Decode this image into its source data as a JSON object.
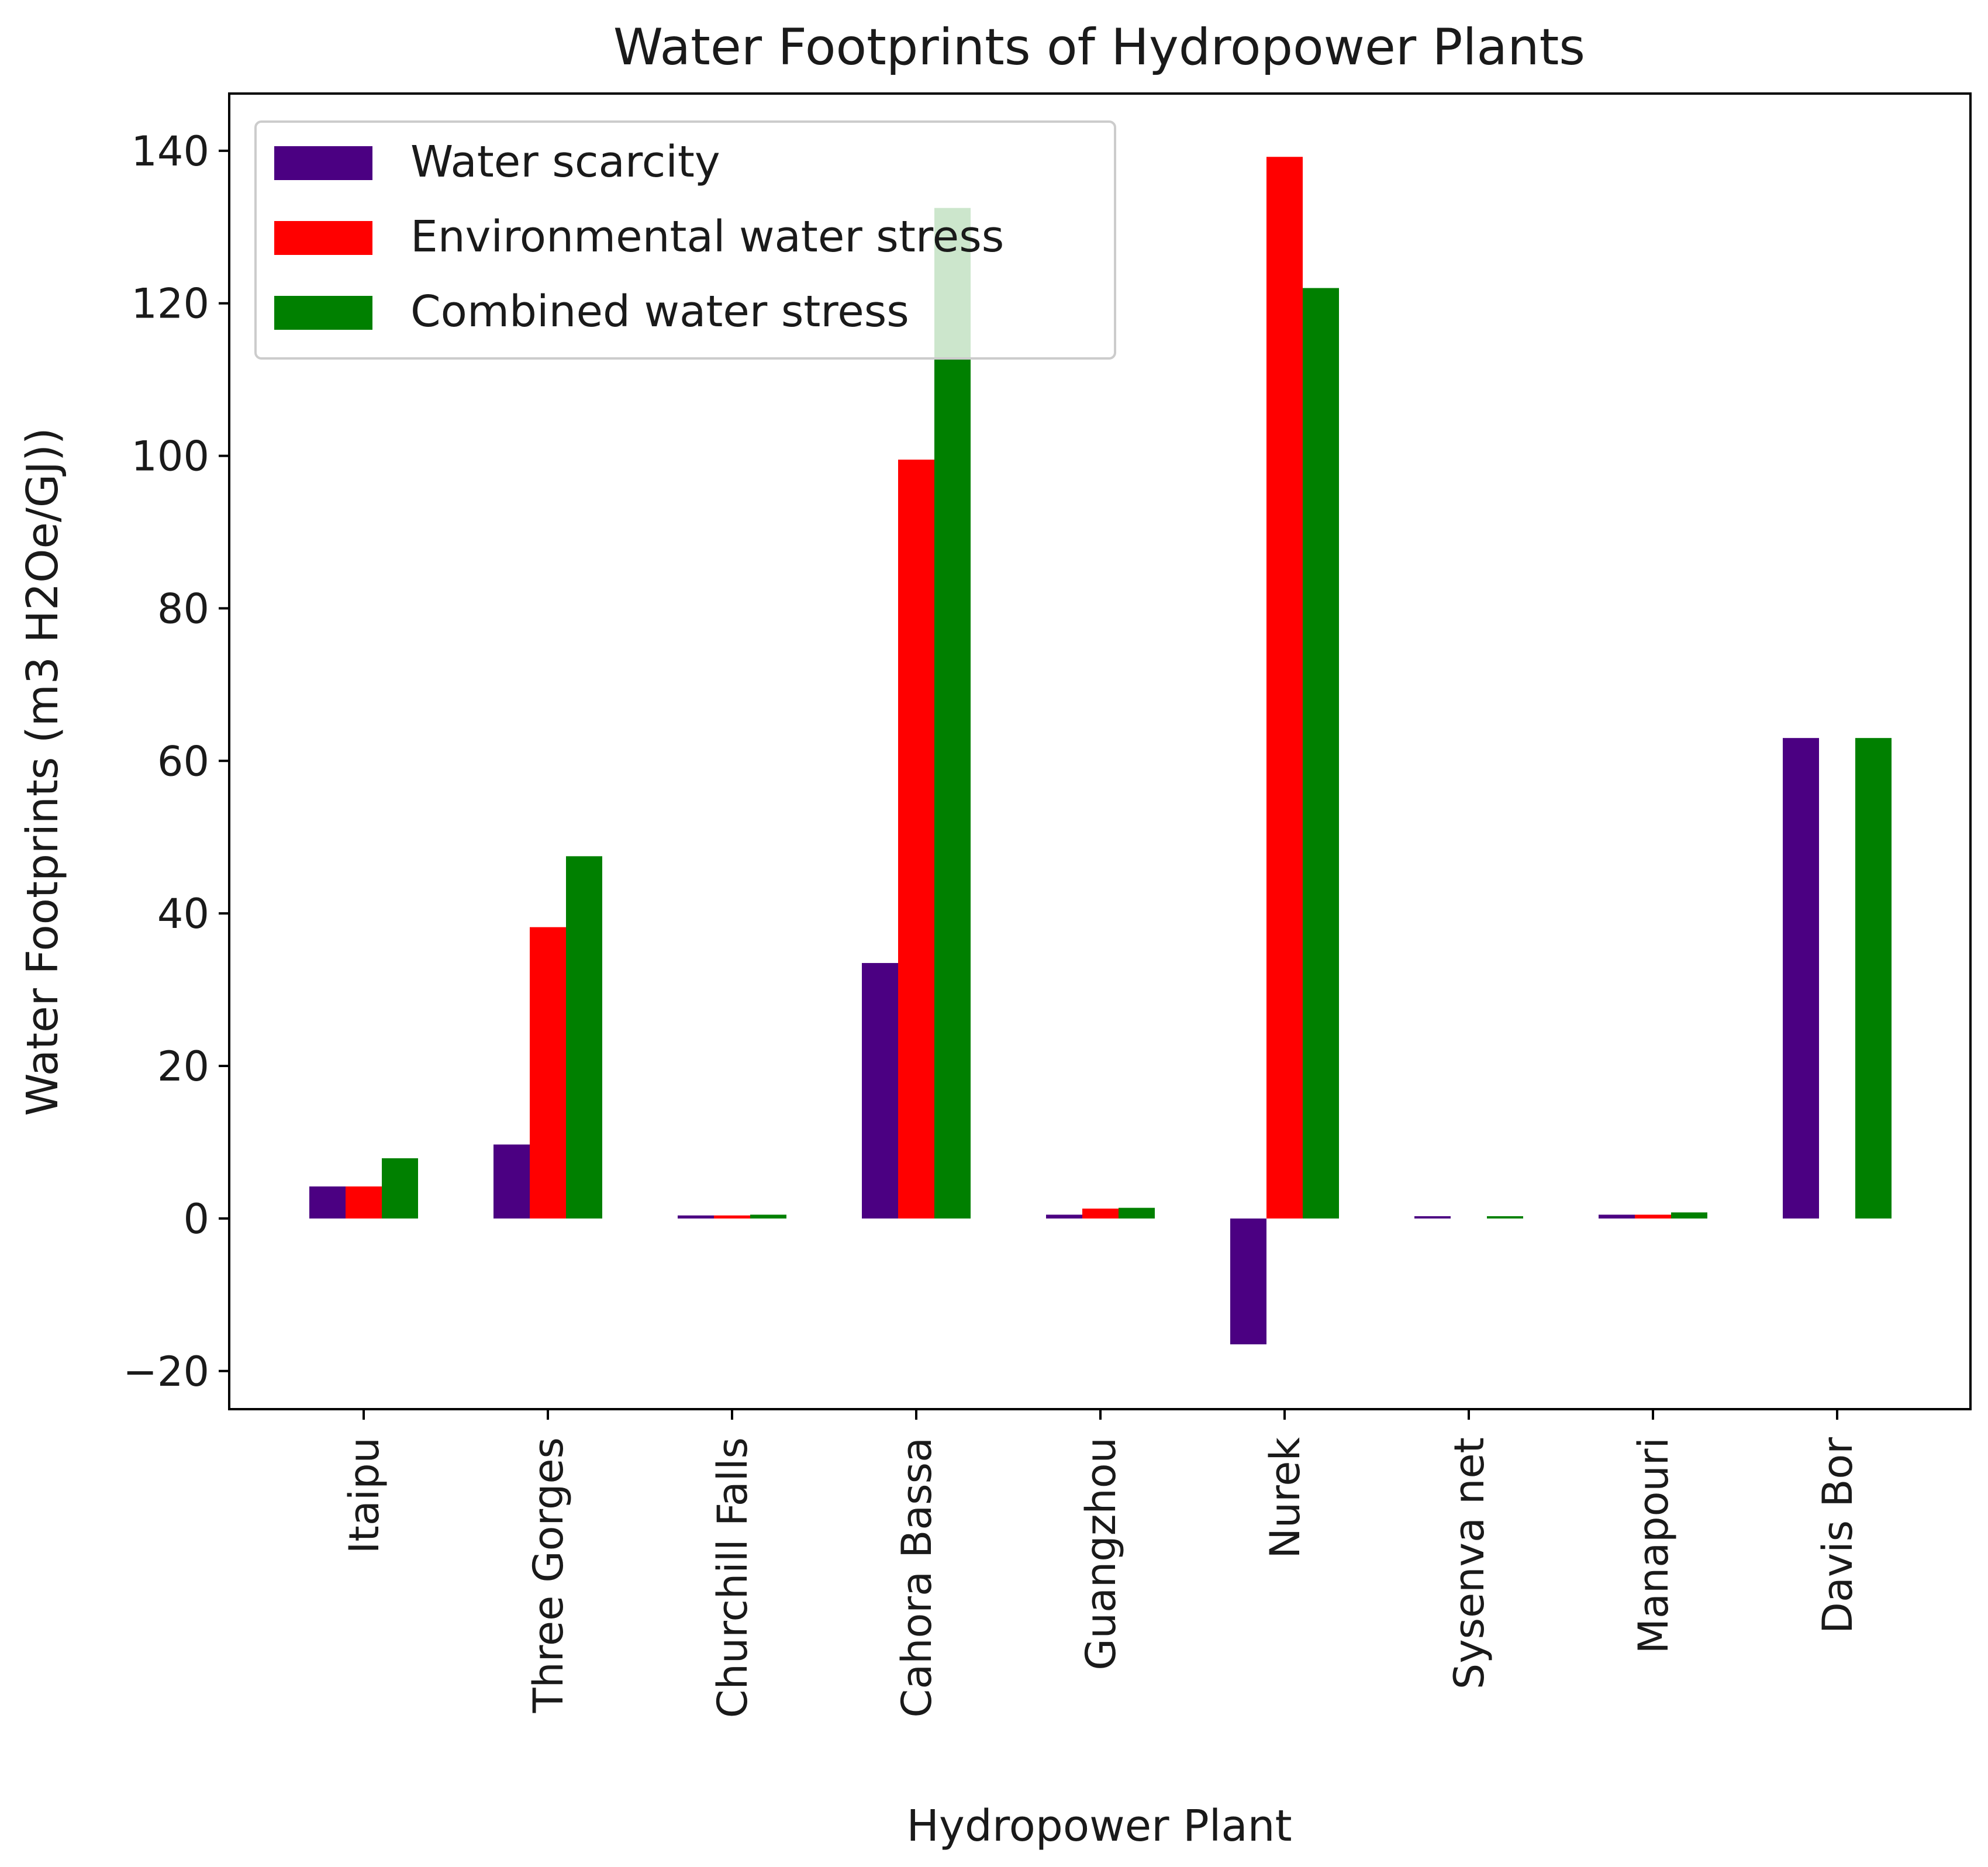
{
  "chart_data": {
    "type": "bar",
    "title": "Water Footprints of Hydropower Plants",
    "xlabel": "Hydropower Plant",
    "ylabel": "Water Footprints (m3 H2Oe/GJ))",
    "categories": [
      "Itaipu",
      "Three Gorges",
      "Churchill Falls",
      "Cahora Bassa",
      "Guangzhou",
      "Nurek",
      "Sysenva net",
      "Manapouri",
      "Davis Bor"
    ],
    "series": [
      {
        "name": "Water scarcity",
        "color": "#4b0082",
        "values": [
          4.2,
          9.7,
          0.4,
          33.5,
          0.5,
          -16.5,
          0.3,
          0.5,
          63.0
        ]
      },
      {
        "name": "Environmental water stress",
        "color": "#ff0000",
        "values": [
          4.2,
          38.2,
          0.4,
          99.5,
          1.3,
          139.2,
          0.0,
          0.5,
          0.0
        ]
      },
      {
        "name": "Combined water stress",
        "color": "#008000",
        "values": [
          7.9,
          47.5,
          0.5,
          132.5,
          1.4,
          122.0,
          0.3,
          0.8,
          63.0
        ]
      }
    ],
    "yticks": [
      -20,
      0,
      20,
      40,
      60,
      80,
      100,
      120,
      140
    ],
    "yticklabels": [
      "−20",
      "0",
      "20",
      "40",
      "60",
      "80",
      "100",
      "120",
      "140"
    ],
    "ylim": [
      -25,
      147.5
    ],
    "grid": false,
    "legend_position": "upper left"
  }
}
